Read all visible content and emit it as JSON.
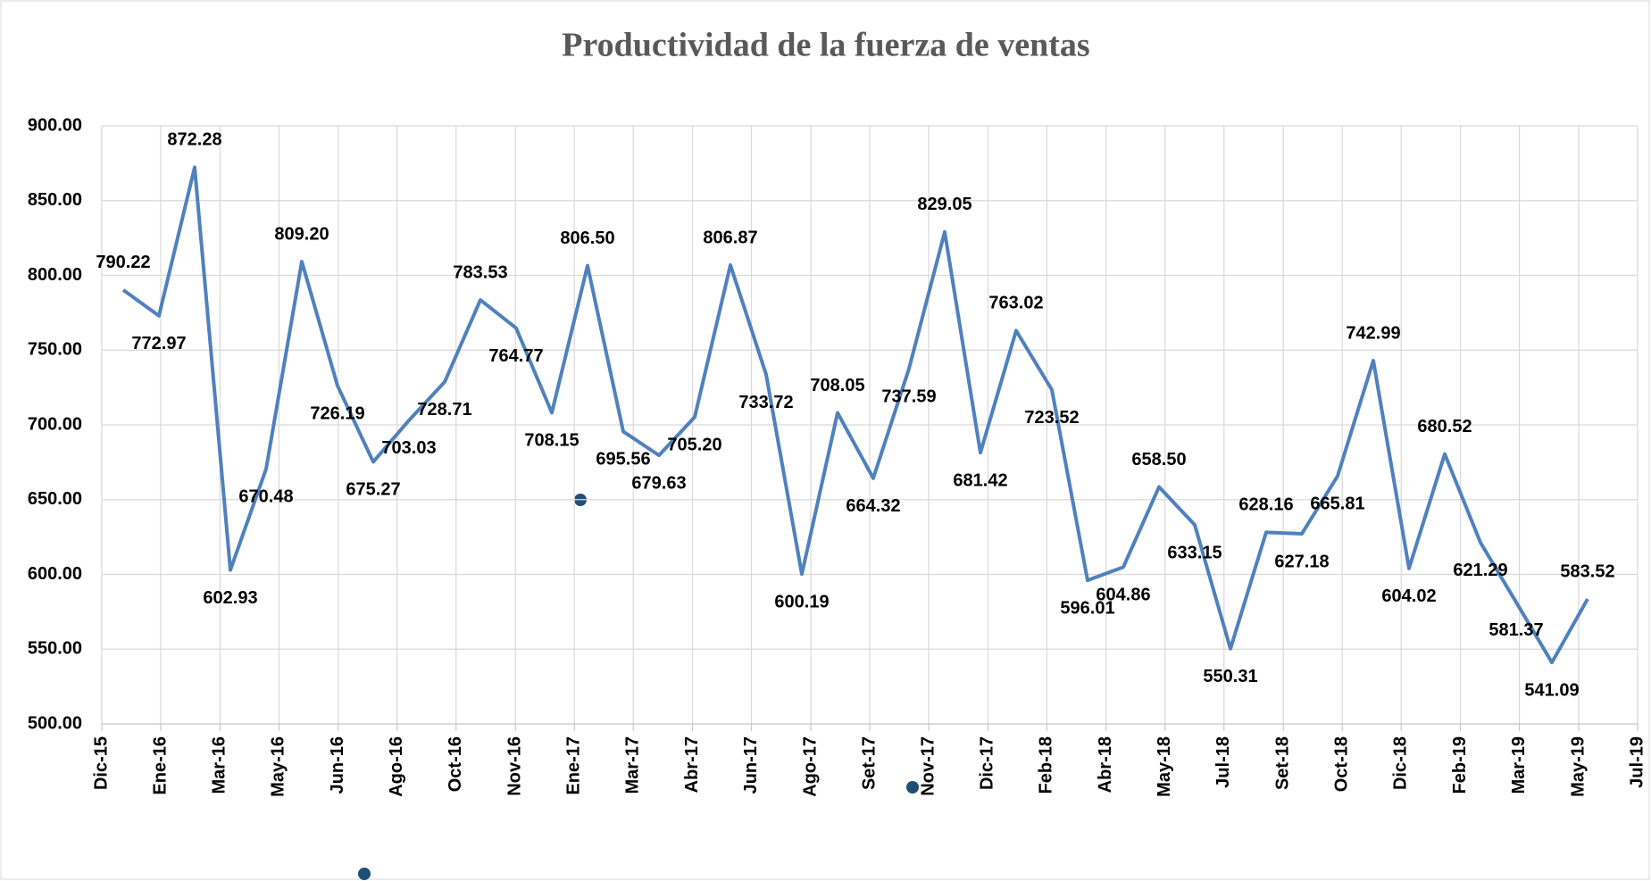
{
  "chart_data": {
    "type": "line",
    "title": "Productividad de la fuerza de ventas",
    "x": [
      0.6,
      1.6,
      2.6,
      3.6,
      4.6,
      5.6,
      6.6,
      7.6,
      8.6,
      9.6,
      10.6,
      11.6,
      12.6,
      13.6,
      14.6,
      15.6,
      16.6,
      17.6,
      18.6,
      19.6,
      20.6,
      21.6,
      22.6,
      23.6,
      24.6,
      25.6,
      26.6,
      27.6,
      28.6,
      29.6,
      30.6,
      31.6,
      32.6,
      33.6,
      34.6,
      35.6,
      36.6,
      37.6,
      38.6,
      39.6,
      40.6,
      41.6
    ],
    "series": [
      {
        "color": "#4f81bd",
        "values": [
          790.22,
          772.97,
          872.28,
          602.93,
          670.48,
          809.2,
          726.19,
          675.27,
          703.03,
          728.71,
          783.53,
          764.77,
          708.15,
          806.5,
          695.56,
          679.63,
          705.2,
          806.87,
          733.72,
          600.19,
          708.05,
          664.32,
          737.59,
          829.05,
          681.42,
          763.02,
          723.52,
          596.01,
          604.86,
          658.5,
          633.15,
          550.31,
          628.16,
          627.18,
          665.81,
          742.99,
          604.02,
          680.52,
          621.29,
          581.37,
          541.09,
          583.52
        ],
        "value_labels": [
          "790.22",
          "772.97",
          "872.28",
          "602.93",
          "670.48",
          "809.20",
          "726.19",
          "675.27",
          "703.03",
          "728.71",
          "783.53",
          "764.77",
          "708.15",
          "806.50",
          "695.56",
          "679.63",
          "705.20",
          "806.87",
          "733.72",
          "600.19",
          "708.05",
          "664.32",
          "737.59",
          "829.05",
          "681.42",
          "763.02",
          "723.52",
          "596.01",
          "604.86",
          "658.50",
          "633.15",
          "550.31",
          "628.16",
          "627.18",
          "665.81",
          "742.99",
          "604.02",
          "680.52",
          "621.29",
          "581.37",
          "541.09",
          "583.52"
        ]
      }
    ],
    "xlim": [
      0,
      43
    ],
    "xticks": [
      {
        "value": 0,
        "label": "Dic-15"
      },
      {
        "value": 1.65,
        "label": "Ene-16"
      },
      {
        "value": 3.31,
        "label": "Mar-16"
      },
      {
        "value": 4.96,
        "label": "May-16"
      },
      {
        "value": 6.62,
        "label": "Jun-16"
      },
      {
        "value": 8.27,
        "label": "Ago-16"
      },
      {
        "value": 9.92,
        "label": "Oct-16"
      },
      {
        "value": 11.58,
        "label": "Nov-16"
      },
      {
        "value": 13.23,
        "label": "Ene-17"
      },
      {
        "value": 14.88,
        "label": "Mar-17"
      },
      {
        "value": 16.54,
        "label": "Abr-17"
      },
      {
        "value": 18.19,
        "label": "Jun-17"
      },
      {
        "value": 19.85,
        "label": "Ago-17"
      },
      {
        "value": 21.5,
        "label": "Set-17"
      },
      {
        "value": 23.15,
        "label": "Nov-17"
      },
      {
        "value": 24.81,
        "label": "Dic-17"
      },
      {
        "value": 26.46,
        "label": "Feb-18"
      },
      {
        "value": 28.12,
        "label": "Abr-18"
      },
      {
        "value": 29.77,
        "label": "May-18"
      },
      {
        "value": 31.42,
        "label": "Jul-18"
      },
      {
        "value": 33.08,
        "label": "Set-18"
      },
      {
        "value": 34.73,
        "label": "Oct-18"
      },
      {
        "value": 36.38,
        "label": "Dic-18"
      },
      {
        "value": 38.04,
        "label": "Feb-19"
      },
      {
        "value": 39.69,
        "label": "Mar-19"
      },
      {
        "value": 41.35,
        "label": "May-19"
      },
      {
        "value": 43,
        "label": "Jul-19"
      }
    ],
    "ylim": [
      500,
      900
    ],
    "yticks": [
      {
        "value": 500,
        "label": "500.00"
      },
      {
        "value": 550,
        "label": "550.00"
      },
      {
        "value": 600,
        "label": "600.00"
      },
      {
        "value": 650,
        "label": "650.00"
      },
      {
        "value": 700,
        "label": "700.00"
      },
      {
        "value": 750,
        "label": "750.00"
      },
      {
        "value": 800,
        "label": "800.00"
      },
      {
        "value": 850,
        "label": "850.00"
      },
      {
        "value": 900,
        "label": "900.00"
      }
    ],
    "grid": true
  }
}
